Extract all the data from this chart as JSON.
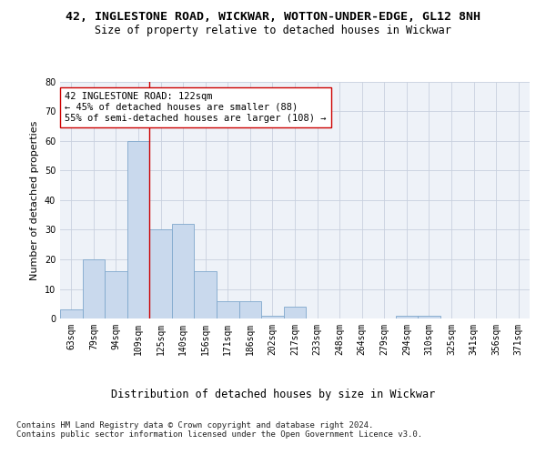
{
  "title_line1": "42, INGLESTONE ROAD, WICKWAR, WOTTON-UNDER-EDGE, GL12 8NH",
  "title_line2": "Size of property relative to detached houses in Wickwar",
  "xlabel": "Distribution of detached houses by size in Wickwar",
  "ylabel": "Number of detached properties",
  "categories": [
    "63sqm",
    "79sqm",
    "94sqm",
    "109sqm",
    "125sqm",
    "140sqm",
    "156sqm",
    "171sqm",
    "186sqm",
    "202sqm",
    "217sqm",
    "233sqm",
    "248sqm",
    "264sqm",
    "279sqm",
    "294sqm",
    "310sqm",
    "325sqm",
    "341sqm",
    "356sqm",
    "371sqm"
  ],
  "values": [
    3,
    20,
    16,
    60,
    30,
    32,
    16,
    6,
    6,
    1,
    4,
    0,
    0,
    0,
    0,
    1,
    1,
    0,
    0,
    0,
    0
  ],
  "bar_color": "#c9d9ed",
  "bar_edge_color": "#7fa8cc",
  "grid_color": "#c8d0de",
  "background_color": "#eef2f8",
  "vline_x_index": 4,
  "vline_color": "#cc0000",
  "annotation_line1": "42 INGLESTONE ROAD: 122sqm",
  "annotation_line2": "← 45% of detached houses are smaller (88)",
  "annotation_line3": "55% of semi-detached houses are larger (108) →",
  "ylim": [
    0,
    80
  ],
  "yticks": [
    0,
    10,
    20,
    30,
    40,
    50,
    60,
    70,
    80
  ],
  "footnote": "Contains HM Land Registry data © Crown copyright and database right 2024.\nContains public sector information licensed under the Open Government Licence v3.0.",
  "title_fontsize": 9.5,
  "subtitle_fontsize": 8.5,
  "xlabel_fontsize": 8.5,
  "ylabel_fontsize": 8,
  "tick_fontsize": 7,
  "annotation_fontsize": 7.5,
  "footnote_fontsize": 6.5
}
